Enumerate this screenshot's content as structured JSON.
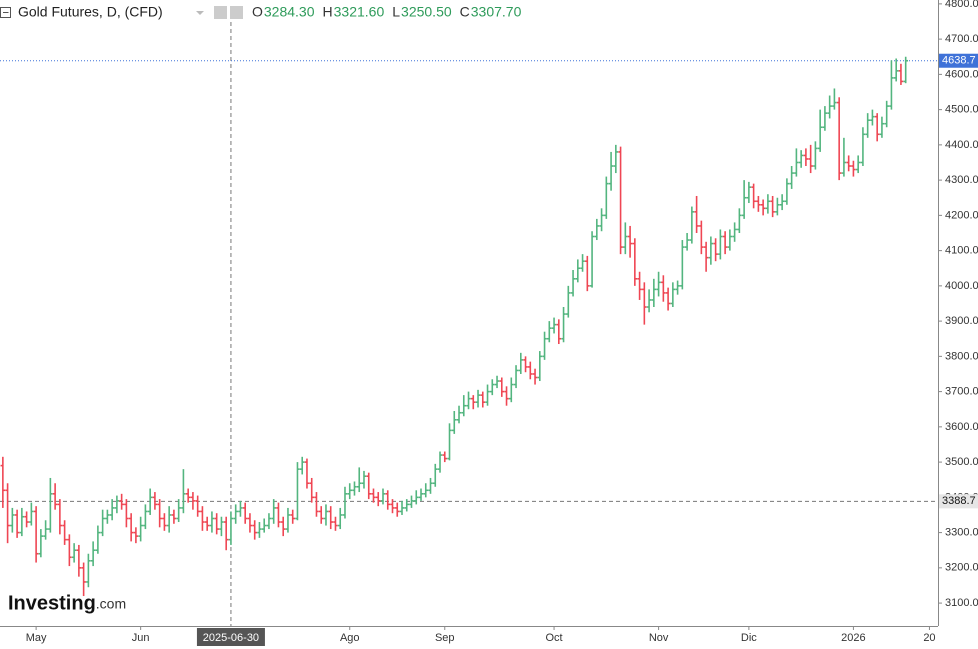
{
  "chart_data": {
    "type": "ohlc",
    "title": "Gold Futures, D, (CFD)",
    "header_ohlc": [
      {
        "name": "O",
        "value": {
          "value": 3284.3,
          "label": "3284.30"
        }
      },
      {
        "name": "H",
        "value": {
          "value": 3321.6,
          "label": "3321.60"
        }
      },
      {
        "name": "L",
        "value": {
          "value": 3250.5,
          "label": "3250.50"
        }
      },
      {
        "name": "C",
        "value": {
          "value": 3307.7,
          "label": "3307.70"
        }
      }
    ],
    "watermark": {
      "brand": "Investing",
      "suffix": ".com"
    },
    "up_color": "#53b57f",
    "down_color": "#ef4653",
    "open": [
      3490,
      3420,
      3320,
      3350,
      3300,
      3345,
      3330,
      3360,
      3240,
      3290,
      3310,
      3410,
      3380,
      3320,
      3280,
      3230,
      3250,
      3200,
      3160,
      3220,
      3250,
      3300,
      3340,
      3350,
      3370,
      3390,
      3380,
      3340,
      3300,
      3290,
      3320,
      3360,
      3400,
      3380,
      3340,
      3320,
      3350,
      3340,
      3370,
      3410,
      3400,
      3390,
      3360,
      3330,
      3320,
      3340,
      3310,
      3330,
      3280,
      3340,
      3360,
      3370,
      3340,
      3320,
      3300,
      3310,
      3320,
      3340,
      3370,
      3330,
      3310,
      3350,
      3340,
      3480,
      3500,
      3440,
      3400,
      3360,
      3340,
      3360,
      3330,
      3320,
      3350,
      3410,
      3420,
      3430,
      3440,
      3460,
      3410,
      3400,
      3390,
      3410,
      3380,
      3370,
      3360,
      3370,
      3380,
      3390,
      3400,
      3410,
      3420,
      3440,
      3480,
      3520,
      3510,
      3590,
      3620,
      3640,
      3660,
      3680,
      3670,
      3690,
      3670,
      3700,
      3720,
      3730,
      3700,
      3680,
      3720,
      3760,
      3790,
      3770,
      3750,
      3740,
      3800,
      3850,
      3880,
      3890,
      3850,
      3920,
      3980,
      4020,
      4050,
      4070,
      4000,
      4140,
      4170,
      4200,
      4290,
      4340,
      4380,
      4110,
      4140,
      4120,
      4020,
      3990,
      3940,
      3960,
      3990,
      4010,
      3980,
      3950,
      3990,
      4000,
      4110,
      4130,
      4210,
      4170,
      4110,
      4080,
      4120,
      4090,
      4140,
      4110,
      4140,
      4160,
      4200,
      4250,
      4280,
      4240,
      4230,
      4220,
      4240,
      4210,
      4230,
      4240,
      4290,
      4320,
      4350,
      4370,
      4360,
      4340,
      4390,
      4450,
      4490,
      4510,
      4520,
      4320,
      4350,
      4340,
      4330,
      4350,
      4430,
      4470,
      4480,
      4430,
      4460,
      4510,
      4590,
      4610,
      4580
    ],
    "high": [
      3515,
      3440,
      3370,
      3365,
      3370,
      3360,
      3385,
      3375,
      3310,
      3335,
      3455,
      3440,
      3395,
      3335,
      3295,
      3270,
      3265,
      3215,
      3240,
      3275,
      3320,
      3365,
      3365,
      3395,
      3405,
      3410,
      3395,
      3355,
      3315,
      3345,
      3380,
      3425,
      3415,
      3395,
      3355,
      3375,
      3365,
      3395,
      3480,
      3425,
      3415,
      3405,
      3375,
      3345,
      3360,
      3355,
      3345,
      3345,
      3360,
      3380,
      3390,
      3385,
      3355,
      3335,
      3330,
      3340,
      3355,
      3395,
      3385,
      3345,
      3370,
      3365,
      3500,
      3515,
      3510,
      3455,
      3415,
      3375,
      3380,
      3375,
      3345,
      3370,
      3430,
      3440,
      3445,
      3485,
      3475,
      3470,
      3425,
      3415,
      3425,
      3420,
      3395,
      3385,
      3390,
      3395,
      3405,
      3420,
      3425,
      3440,
      3455,
      3495,
      3530,
      3530,
      3610,
      3645,
      3660,
      3690,
      3700,
      3690,
      3705,
      3700,
      3720,
      3735,
      3745,
      3740,
      3715,
      3740,
      3775,
      3810,
      3800,
      3785,
      3765,
      3815,
      3870,
      3900,
      3910,
      3905,
      3940,
      4000,
      4045,
      4075,
      4090,
      4085,
      4155,
      4190,
      4220,
      4310,
      4380,
      4400,
      4395,
      4180,
      4170,
      4135,
      4040,
      4010,
      3990,
      4020,
      4040,
      4030,
      3995,
      4010,
      4015,
      4130,
      4150,
      4225,
      4255,
      4185,
      4125,
      4140,
      4135,
      4160,
      4155,
      4160,
      4180,
      4220,
      4300,
      4295,
      4290,
      4255,
      4245,
      4260,
      4255,
      4250,
      4260,
      4305,
      4340,
      4390,
      4385,
      4390,
      4400,
      4410,
      4500,
      4510,
      4540,
      4560,
      4535,
      4420,
      4370,
      4355,
      4370,
      4450,
      4490,
      4500,
      4490,
      4480,
      4525,
      4640,
      4645,
      4630,
      4650
    ],
    "low": [
      3370,
      3270,
      3300,
      3285,
      3290,
      3315,
      3320,
      3215,
      3230,
      3280,
      3300,
      3365,
      3295,
      3265,
      3205,
      3215,
      3175,
      3120,
      3145,
      3205,
      3240,
      3290,
      3325,
      3335,
      3355,
      3365,
      3315,
      3275,
      3270,
      3275,
      3310,
      3350,
      3365,
      3315,
      3305,
      3300,
      3325,
      3330,
      3355,
      3385,
      3365,
      3345,
      3305,
      3305,
      3300,
      3295,
      3290,
      3250,
      3265,
      3325,
      3345,
      3325,
      3300,
      3280,
      3285,
      3300,
      3310,
      3325,
      3315,
      3290,
      3300,
      3325,
      3335,
      3465,
      3425,
      3385,
      3345,
      3325,
      3320,
      3310,
      3305,
      3310,
      3340,
      3395,
      3405,
      3415,
      3425,
      3395,
      3385,
      3375,
      3380,
      3365,
      3355,
      3345,
      3350,
      3360,
      3370,
      3380,
      3390,
      3400,
      3410,
      3430,
      3470,
      3500,
      3505,
      3580,
      3610,
      3630,
      3650,
      3650,
      3655,
      3655,
      3660,
      3690,
      3710,
      3685,
      3660,
      3670,
      3710,
      3750,
      3755,
      3735,
      3720,
      3730,
      3790,
      3840,
      3865,
      3835,
      3840,
      3910,
      3970,
      4010,
      4040,
      3985,
      3995,
      4130,
      4155,
      4190,
      4270,
      4320,
      4090,
      4090,
      4080,
      4000,
      3960,
      3890,
      3925,
      3940,
      3970,
      3955,
      3930,
      3940,
      3975,
      3990,
      4100,
      4120,
      4150,
      4090,
      4040,
      4060,
      4070,
      4075,
      4090,
      4100,
      4125,
      4150,
      4190,
      4235,
      4220,
      4210,
      4200,
      4205,
      4195,
      4200,
      4215,
      4230,
      4275,
      4310,
      4335,
      4340,
      4320,
      4330,
      4380,
      4440,
      4475,
      4500,
      4300,
      4310,
      4325,
      4310,
      4320,
      4340,
      4420,
      4455,
      4410,
      4420,
      4450,
      4500,
      4580,
      4570,
      4575
    ],
    "close": [
      3420,
      3320,
      3350,
      3300,
      3345,
      3330,
      3360,
      3240,
      3290,
      3310,
      3410,
      3380,
      3320,
      3280,
      3230,
      3250,
      3200,
      3160,
      3220,
      3250,
      3300,
      3340,
      3350,
      3370,
      3390,
      3380,
      3340,
      3300,
      3290,
      3320,
      3360,
      3400,
      3380,
      3340,
      3320,
      3350,
      3340,
      3370,
      3410,
      3400,
      3390,
      3360,
      3330,
      3320,
      3340,
      3310,
      3330,
      3280,
      3340,
      3360,
      3370,
      3340,
      3320,
      3300,
      3310,
      3320,
      3340,
      3370,
      3330,
      3310,
      3350,
      3340,
      3480,
      3500,
      3440,
      3400,
      3360,
      3340,
      3360,
      3330,
      3320,
      3350,
      3410,
      3420,
      3430,
      3440,
      3460,
      3410,
      3400,
      3390,
      3410,
      3380,
      3370,
      3360,
      3370,
      3380,
      3390,
      3400,
      3410,
      3420,
      3440,
      3480,
      3520,
      3510,
      3590,
      3620,
      3640,
      3660,
      3680,
      3670,
      3690,
      3670,
      3700,
      3720,
      3730,
      3700,
      3680,
      3720,
      3760,
      3790,
      3770,
      3750,
      3740,
      3800,
      3850,
      3880,
      3890,
      3850,
      3920,
      3980,
      4020,
      4050,
      4070,
      4000,
      4140,
      4170,
      4200,
      4290,
      4340,
      4380,
      4110,
      4140,
      4120,
      4020,
      3990,
      3940,
      3960,
      3990,
      4010,
      3980,
      3950,
      3990,
      4000,
      4110,
      4130,
      4210,
      4170,
      4110,
      4080,
      4120,
      4090,
      4140,
      4110,
      4140,
      4160,
      4200,
      4250,
      4280,
      4240,
      4230,
      4220,
      4240,
      4210,
      4230,
      4240,
      4290,
      4320,
      4350,
      4370,
      4360,
      4340,
      4390,
      4450,
      4490,
      4510,
      4520,
      4320,
      4350,
      4340,
      4330,
      4350,
      4430,
      4470,
      4480,
      4430,
      4460,
      4510,
      4590,
      4610,
      4580,
      4638.7
    ],
    "xlim": [
      -0.6,
      196.8
    ],
    "xticks": [
      {
        "value": 7,
        "label": "May"
      },
      {
        "value": 29,
        "label": "Jun"
      },
      {
        "value": 73,
        "label": "Ago"
      },
      {
        "value": 93,
        "label": "Sep"
      },
      {
        "value": 116,
        "label": "Oct"
      },
      {
        "value": 138,
        "label": "Nov"
      },
      {
        "value": 157,
        "label": "Dic"
      },
      {
        "value": 179,
        "label": "2026"
      },
      {
        "value": 195,
        "label": "20"
      }
    ],
    "ylim": [
      3035,
      4811
    ],
    "yticks": [
      {
        "value": 3100,
        "label": "3100.0"
      },
      {
        "value": 3200,
        "label": "3200.0"
      },
      {
        "value": 3300,
        "label": "3300.0"
      },
      {
        "value": 3400,
        "label": "3400.0"
      },
      {
        "value": 3500,
        "label": "3500.0"
      },
      {
        "value": 3600,
        "label": "3600.0"
      },
      {
        "value": 3700,
        "label": "3700.0"
      },
      {
        "value": 3800,
        "label": "3800.0"
      },
      {
        "value": 3900,
        "label": "3900.0"
      },
      {
        "value": 4000,
        "label": "4000.0"
      },
      {
        "value": 4100,
        "label": "4100.0"
      },
      {
        "value": 4200,
        "label": "4200.0"
      },
      {
        "value": 4300,
        "label": "4300.0"
      },
      {
        "value": 4400,
        "label": "4400.0"
      },
      {
        "value": 4500,
        "label": "4500.0"
      },
      {
        "value": 4600,
        "label": "4600.0"
      },
      {
        "value": 4700,
        "label": "4700.0"
      },
      {
        "value": 4800,
        "label": "4800.0"
      }
    ],
    "crosshair": {
      "x": {
        "value": 48,
        "label": "2025-06-30"
      },
      "y": {
        "value": 3388.7,
        "label": "3388.7"
      }
    },
    "last_price": {
      "value": 4638.7,
      "label": "4638.7",
      "color": "#3f72d8"
    }
  }
}
